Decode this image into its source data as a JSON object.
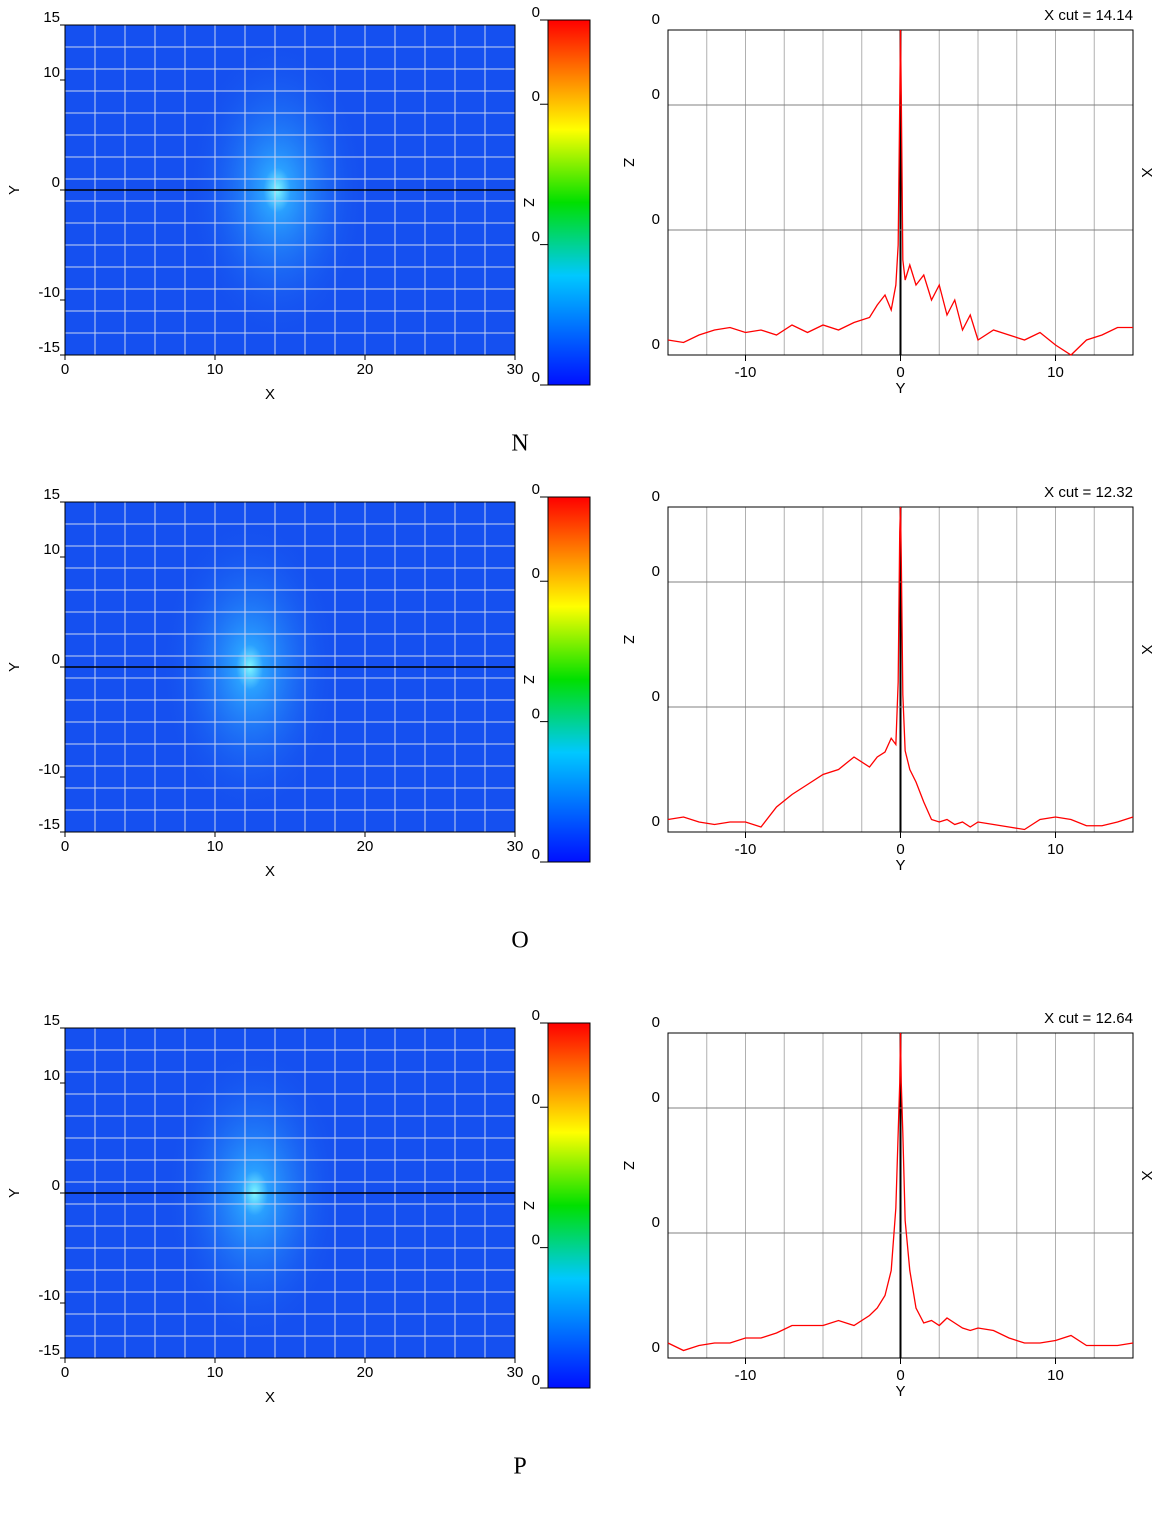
{
  "chart_data": [
    {
      "type": "heatmap",
      "xlabel": "X",
      "ylabel": "Y",
      "zlabel": "Z",
      "xlim": [
        0,
        30
      ],
      "ylim": [
        -15,
        15
      ],
      "xticks": [
        0,
        10,
        20,
        30
      ],
      "yticks": [
        -15,
        -10,
        0,
        10,
        15
      ],
      "xgrid": [
        2,
        4,
        6,
        8,
        10,
        12,
        14,
        16,
        18,
        20,
        22,
        24,
        26,
        28
      ],
      "ygrid": [
        -13,
        -11,
        -9,
        -7,
        -5,
        -3,
        -1,
        1,
        3,
        5,
        7,
        9,
        11,
        13
      ],
      "cut_y": 0,
      "peak_x": 14.14,
      "zlim": [
        0,
        0.0026
      ],
      "zticks": [
        0,
        {
          "value": 0.001,
          "label": "0"
        },
        {
          "value": 0.002,
          "label": "0"
        },
        {
          "value": 0.0026,
          "label": "0"
        }
      ]
    },
    {
      "type": "line",
      "annotation": "X cut = 14.14",
      "xlabel": "Y",
      "ylabel": "Z",
      "right_label": "X",
      "xlim": [
        -15,
        15
      ],
      "ylim": [
        0,
        0.0026
      ],
      "xticks": [
        -10,
        0,
        10
      ],
      "yticks": [
        0,
        {
          "value": 0.001,
          "label": "0"
        },
        {
          "value": 0.002,
          "label": "0"
        },
        {
          "value": 0.0026,
          "label": "0"
        }
      ],
      "xgrid": [
        -12.5,
        -10,
        -7.5,
        -5,
        -2.5,
        0,
        2.5,
        5,
        7.5,
        10,
        12.5
      ],
      "x": [
        -15,
        -14,
        -13,
        -12,
        -11,
        -10,
        -9,
        -8,
        -7,
        -6,
        -5,
        -4,
        -3,
        -2,
        -1.5,
        -1,
        -0.6,
        -0.3,
        -0.15,
        -0.05,
        0,
        0.05,
        0.15,
        0.3,
        0.6,
        1,
        1.5,
        2,
        2.5,
        3,
        3.5,
        4,
        4.5,
        5,
        6,
        7,
        8,
        9,
        10,
        11,
        12,
        13,
        14,
        15
      ],
      "series": [
        {
          "color": "#ff0000",
          "values": [
            0.00012,
            0.0001,
            0.00016,
            0.0002,
            0.00022,
            0.00018,
            0.0002,
            0.00016,
            0.00024,
            0.00018,
            0.00024,
            0.0002,
            0.00026,
            0.0003,
            0.0004,
            0.00048,
            0.00036,
            0.00056,
            0.00088,
            0.002,
            0.0026,
            0.00208,
            0.00076,
            0.0006,
            0.00072,
            0.00056,
            0.00064,
            0.00044,
            0.00056,
            0.00032,
            0.00044,
            0.0002,
            0.00032,
            0.00012,
            0.0002,
            0.00016,
            0.00012,
            0.00018,
            8e-05,
            0,
            0.00012,
            0.00016,
            0.00022,
            0.00022
          ]
        }
      ]
    },
    {
      "type": "heatmap",
      "xlabel": "X",
      "ylabel": "Y",
      "zlabel": "Z",
      "xlim": [
        0,
        30
      ],
      "ylim": [
        -15,
        15
      ],
      "xticks": [
        0,
        10,
        20,
        30
      ],
      "yticks": [
        -15,
        -10,
        0,
        10,
        15
      ],
      "xgrid": [
        2,
        4,
        6,
        8,
        10,
        12,
        14,
        16,
        18,
        20,
        22,
        24,
        26,
        28
      ],
      "ygrid": [
        -13,
        -11,
        -9,
        -7,
        -5,
        -3,
        -1,
        1,
        3,
        5,
        7,
        9,
        11,
        13
      ],
      "cut_y": 0,
      "peak_x": 12.32,
      "zlim": [
        0,
        0.0026
      ],
      "zticks": [
        0,
        {
          "value": 0.001,
          "label": "0"
        },
        {
          "value": 0.002,
          "label": "0"
        },
        {
          "value": 0.0026,
          "label": "0"
        }
      ]
    },
    {
      "type": "line",
      "annotation": "X cut = 12.32",
      "xlabel": "Y",
      "ylabel": "Z",
      "right_label": "X",
      "xlim": [
        -15,
        15
      ],
      "ylim": [
        0,
        0.0026
      ],
      "xticks": [
        -10,
        0,
        10
      ],
      "yticks": [
        0,
        {
          "value": 0.001,
          "label": "0"
        },
        {
          "value": 0.002,
          "label": "0"
        },
        {
          "value": 0.0026,
          "label": "0"
        }
      ],
      "xgrid": [
        -12.5,
        -10,
        -7.5,
        -5,
        -2.5,
        0,
        2.5,
        5,
        7.5,
        10,
        12.5
      ],
      "x": [
        -15,
        -14,
        -13,
        -12,
        -11,
        -10,
        -9,
        -8,
        -7,
        -6,
        -5,
        -4,
        -3,
        -2,
        -1.5,
        -1,
        -0.6,
        -0.3,
        -0.15,
        -0.05,
        0,
        0.05,
        0.15,
        0.3,
        0.6,
        1,
        1.5,
        2,
        2.5,
        3,
        3.5,
        4,
        4.5,
        5,
        6,
        7,
        8,
        9,
        10,
        11,
        12,
        13,
        14,
        15
      ],
      "series": [
        {
          "color": "#ff0000",
          "values": [
            0.0001,
            0.00012,
            8e-05,
            6e-05,
            8e-05,
            8e-05,
            4e-05,
            0.0002,
            0.0003,
            0.00038,
            0.00046,
            0.0005,
            0.0006,
            0.00052,
            0.0006,
            0.00064,
            0.00075,
            0.0007,
            0.0012,
            0.0024,
            0.0026,
            0.0022,
            0.0011,
            0.00065,
            0.0005,
            0.0004,
            0.00024,
            0.0001,
            8e-05,
            0.0001,
            6e-05,
            8e-05,
            4e-05,
            8e-05,
            6e-05,
            4e-05,
            2e-05,
            0.0001,
            0.00012,
            0.0001,
            5e-05,
            5e-05,
            8e-05,
            0.00012
          ]
        }
      ]
    },
    {
      "type": "heatmap",
      "xlabel": "X",
      "ylabel": "Y",
      "zlabel": "Z",
      "xlim": [
        0,
        30
      ],
      "ylim": [
        -15,
        15
      ],
      "xticks": [
        0,
        10,
        20,
        30
      ],
      "yticks": [
        -15,
        -10,
        0,
        10,
        15
      ],
      "xgrid": [
        2,
        4,
        6,
        8,
        10,
        12,
        14,
        16,
        18,
        20,
        22,
        24,
        26,
        28
      ],
      "ygrid": [
        -13,
        -11,
        -9,
        -7,
        -5,
        -3,
        -1,
        1,
        3,
        5,
        7,
        9,
        11,
        13
      ],
      "cut_y": 0,
      "peak_x": 12.64,
      "zlim": [
        0,
        0.0026
      ],
      "zticks": [
        0,
        {
          "value": 0.001,
          "label": "0"
        },
        {
          "value": 0.002,
          "label": "0"
        },
        {
          "value": 0.0026,
          "label": "0"
        }
      ]
    },
    {
      "type": "line",
      "annotation": "X cut = 12.64",
      "xlabel": "Y",
      "ylabel": "Z",
      "right_label": "X",
      "xlim": [
        -15,
        15
      ],
      "ylim": [
        0,
        0.0026
      ],
      "xticks": [
        -10,
        0,
        10
      ],
      "yticks": [
        0,
        {
          "value": 0.001,
          "label": "0"
        },
        {
          "value": 0.002,
          "label": "0"
        },
        {
          "value": 0.0026,
          "label": "0"
        }
      ],
      "xgrid": [
        -12.5,
        -10,
        -7.5,
        -5,
        -2.5,
        0,
        2.5,
        5,
        7.5,
        10,
        12.5
      ],
      "x": [
        -15,
        -14,
        -13,
        -12,
        -11,
        -10,
        -9,
        -8,
        -7,
        -6,
        -5,
        -4,
        -3,
        -2,
        -1.5,
        -1,
        -0.6,
        -0.3,
        -0.15,
        -0.05,
        0,
        0.05,
        0.15,
        0.3,
        0.6,
        1,
        1.5,
        2,
        2.5,
        3,
        3.5,
        4,
        4.5,
        5,
        6,
        7,
        8,
        9,
        10,
        11,
        12,
        13,
        14,
        15
      ],
      "series": [
        {
          "color": "#ff0000",
          "values": [
            0.00012,
            6e-05,
            0.0001,
            0.00012,
            0.00012,
            0.00016,
            0.00016,
            0.0002,
            0.00026,
            0.00026,
            0.00026,
            0.0003,
            0.00026,
            0.00034,
            0.0004,
            0.0005,
            0.0007,
            0.0012,
            0.0018,
            0.0022,
            0.0026,
            0.0022,
            0.0018,
            0.0011,
            0.0007,
            0.0004,
            0.00028,
            0.0003,
            0.00026,
            0.00032,
            0.00028,
            0.00024,
            0.00022,
            0.00024,
            0.00022,
            0.00016,
            0.00012,
            0.00012,
            0.00014,
            0.00018,
            0.0001,
            0.0001,
            0.0001,
            0.00012
          ]
        }
      ]
    }
  ],
  "captions": [
    "N",
    "O",
    "P"
  ]
}
